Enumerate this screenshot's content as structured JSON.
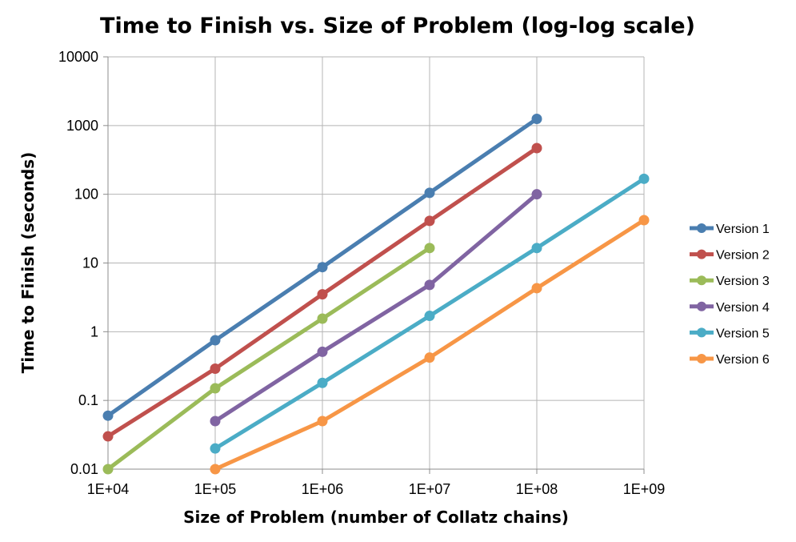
{
  "chart_data": {
    "type": "line",
    "title": "Time to Finish vs. Size of Problem (log-log scale)",
    "xlabel": "Size of Problem (number of Collatz chains)",
    "ylabel": "Time to Finish (seconds)",
    "x_scale": "log",
    "y_scale": "log",
    "xlim": [
      10000,
      1000000000
    ],
    "ylim": [
      0.01,
      10000
    ],
    "x_ticks": [
      10000,
      100000,
      1000000,
      10000000,
      100000000,
      1000000000
    ],
    "x_tick_labels": [
      "1E+04",
      "1E+05",
      "1E+06",
      "1E+07",
      "1E+08",
      "1E+09"
    ],
    "y_ticks": [
      0.01,
      0.1,
      1,
      10,
      100,
      1000,
      10000
    ],
    "y_tick_labels": [
      "0.01",
      "0.1",
      "1",
      "10",
      "100",
      "1000",
      "10000"
    ],
    "grid": true,
    "legend_position": "right",
    "series": [
      {
        "name": "Version 1",
        "color": "#4a7eb0",
        "x": [
          10000,
          100000,
          1000000,
          10000000,
          100000000
        ],
        "y": [
          0.06,
          0.75,
          8.7,
          105,
          1250
        ]
      },
      {
        "name": "Version 2",
        "color": "#c0504d",
        "x": [
          10000,
          100000,
          1000000,
          10000000,
          100000000
        ],
        "y": [
          0.03,
          0.29,
          3.5,
          41,
          470
        ]
      },
      {
        "name": "Version 3",
        "color": "#9bbb59",
        "x": [
          10000,
          100000,
          1000000,
          10000000
        ],
        "y": [
          0.01,
          0.15,
          1.55,
          16.5
        ]
      },
      {
        "name": "Version 4",
        "color": "#8064a2",
        "x": [
          100000,
          1000000,
          10000000,
          100000000
        ],
        "y": [
          0.05,
          0.51,
          4.8,
          100
        ]
      },
      {
        "name": "Version 5",
        "color": "#4bacc6",
        "x": [
          100000,
          1000000,
          10000000,
          100000000,
          1000000000
        ],
        "y": [
          0.02,
          0.18,
          1.7,
          16.5,
          168
        ]
      },
      {
        "name": "Version 6",
        "color": "#f79646",
        "x": [
          100000,
          1000000,
          10000000,
          100000000,
          1000000000
        ],
        "y": [
          0.01,
          0.05,
          0.42,
          4.3,
          42
        ]
      }
    ]
  }
}
